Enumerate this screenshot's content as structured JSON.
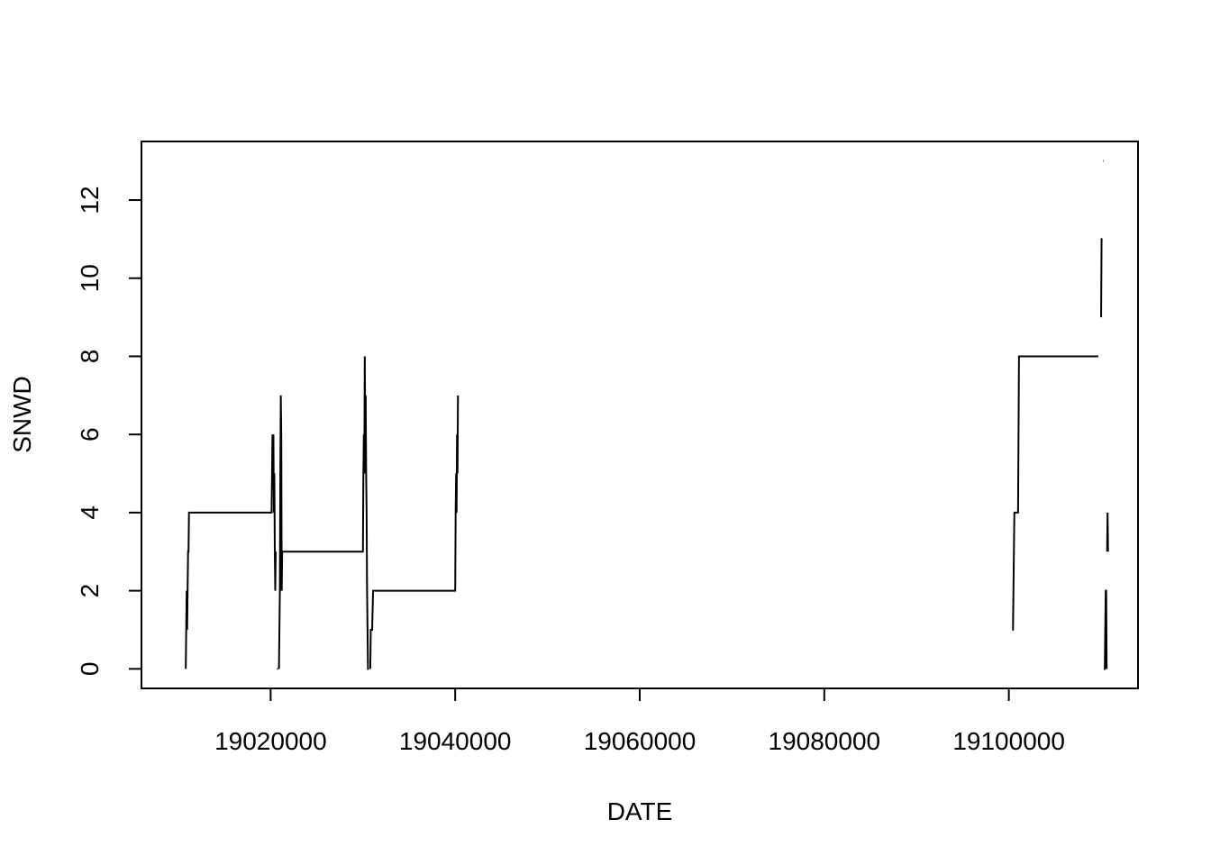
{
  "chart_data": {
    "type": "line",
    "xlabel": "DATE",
    "ylabel": "SNWD",
    "xlim": [
      19006000,
      19114000
    ],
    "ylim": [
      -0.5,
      13.5
    ],
    "xticks": [
      19020000,
      19040000,
      19060000,
      19080000,
      19100000
    ],
    "xtick_labels": [
      "19020000",
      "19040000",
      "19060000",
      "19080000",
      "19100000"
    ],
    "yticks": [
      0,
      2,
      4,
      6,
      8,
      10,
      12
    ],
    "ytick_labels": [
      "0",
      "2",
      "4",
      "6",
      "8",
      "10",
      "12"
    ],
    "grid": false,
    "colors": {
      "line": "#000000",
      "background": "#ffffff"
    },
    "series": [
      {
        "segments": [
          {
            "x": [
              19010800,
              19010850,
              19010900,
              19010950,
              19011000,
              19011050,
              19011100,
              19011150,
              19011200,
              19020100,
              19020150,
              19020200,
              19020250,
              19020300,
              19020350,
              19020400,
              19020450,
              19020500,
              19020550
            ],
            "y": [
              0,
              1,
              2,
              1,
              2,
              3,
              3,
              4,
              4,
              4,
              5,
              6,
              5,
              6,
              4,
              5,
              3,
              2,
              3
            ]
          },
          {
            "x": [
              19020700,
              19020800
            ],
            "y": [
              0,
              0
            ]
          },
          {
            "x": [
              19020900,
              19020950,
              19021000,
              19021050,
              19021100,
              19021150,
              19021200,
              19021250,
              19021300,
              19021350,
              19030000,
              19030050,
              19030100,
              19030150,
              19030200,
              19030250,
              19030300,
              19030350,
              19030400,
              19030450,
              19030500,
              19030550,
              19030600,
              19030650
            ],
            "y": [
              0,
              1,
              2,
              5,
              7,
              6,
              2,
              3,
              3,
              3,
              3,
              5,
              6,
              5,
              8,
              6,
              7,
              5,
              4,
              2,
              1,
              0,
              0,
              0
            ]
          },
          {
            "x": [
              19030800,
              19030850,
              19030900,
              19031000,
              19031100,
              19031200,
              19040000,
              19040050,
              19040100,
              19040150,
              19040200,
              19040250,
              19040300
            ],
            "y": [
              0,
              1,
              1,
              1,
              2,
              2,
              2,
              4,
              5,
              4,
              6,
              5,
              7
            ]
          },
          {
            "x": [
              19100400,
              19100450,
              19100500,
              19100550,
              19100600,
              19100650,
              19101000,
              19101100,
              19101200,
              19101250,
              19101300,
              19101350,
              19101400,
              19101500,
              19101600,
              19101700,
              19101800,
              19109500,
              19109600,
              19109700
            ],
            "y": [
              1,
              1,
              2,
              3,
              4,
              4,
              4,
              8,
              8,
              8,
              8,
              8,
              8,
              8,
              8,
              8,
              8,
              8,
              8,
              8
            ]
          },
          {
            "x": [
              19110000,
              19110050,
              19110100,
              19110150
            ],
            "y": [
              9,
              11,
              11,
              11
            ]
          },
          {
            "x": [
              19110200,
              19110250
            ],
            "y": [
              13,
              13
            ]
          },
          {
            "x": [
              19110300,
              19110350,
              19110400,
              19110450,
              19110500,
              19110550,
              19110600
            ],
            "y": [
              0,
              0,
              0,
              1,
              2,
              2,
              0
            ]
          },
          {
            "x": [
              19110650,
              19110700,
              19110750
            ],
            "y": [
              3,
              4,
              3
            ]
          }
        ]
      }
    ]
  }
}
